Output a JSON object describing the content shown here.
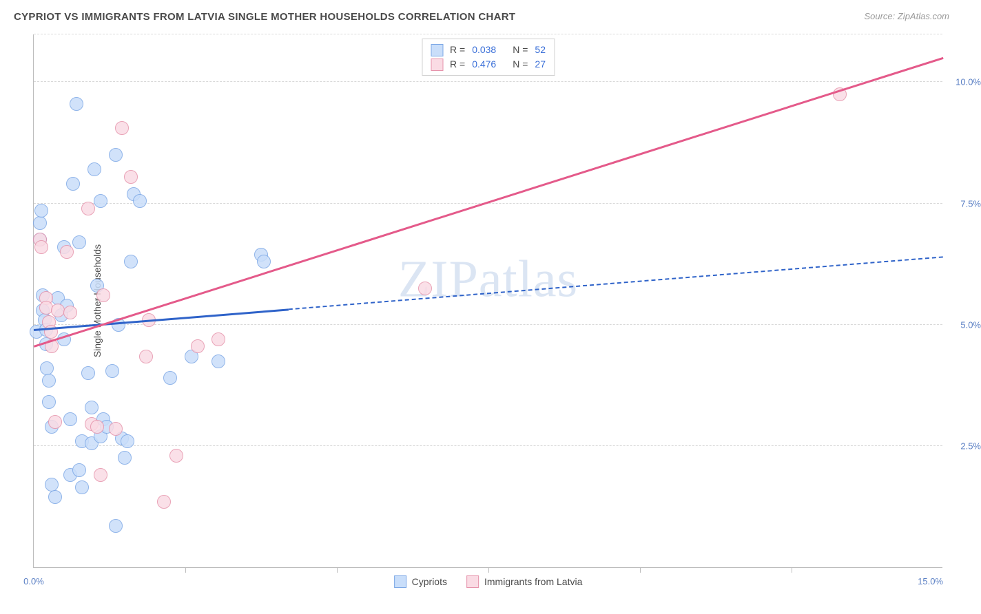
{
  "header": {
    "title": "CYPRIOT VS IMMIGRANTS FROM LATVIA SINGLE MOTHER HOUSEHOLDS CORRELATION CHART",
    "source": "Source: ZipAtlas.com"
  },
  "chart": {
    "type": "scatter",
    "ylabel": "Single Mother Households",
    "watermark": "ZIPatlas",
    "background_color": "#ffffff",
    "grid_color": "#d8d8d8",
    "axis_color": "#bdbdbd",
    "tick_label_color": "#5a7fc4",
    "xlim": [
      0.0,
      15.0
    ],
    "ylim": [
      0.0,
      11.0
    ],
    "yticks": [
      {
        "value": 2.5,
        "label": "2.5%"
      },
      {
        "value": 5.0,
        "label": "5.0%"
      },
      {
        "value": 7.5,
        "label": "7.5%"
      },
      {
        "value": 10.0,
        "label": "10.0%"
      }
    ],
    "xticks_minor": [
      2.5,
      5.0,
      7.5,
      10.0,
      12.5
    ],
    "xtick_labels": [
      {
        "value": 0.0,
        "label": "0.0%",
        "align": "center"
      },
      {
        "value": 15.0,
        "label": "15.0%",
        "align": "right"
      }
    ],
    "marker_radius": 10,
    "series": [
      {
        "name": "Cypriots",
        "fill_color": "#c9defa",
        "stroke_color": "#7da8e6",
        "stat_r": "0.038",
        "stat_n": "52",
        "trend": {
          "x1": 0.0,
          "y1": 4.9,
          "x2": 15.0,
          "y2": 6.4,
          "solid_until_x": 4.2,
          "color": "#2f63c9"
        },
        "points": [
          [
            0.05,
            4.85
          ],
          [
            0.1,
            7.1
          ],
          [
            0.1,
            6.75
          ],
          [
            0.12,
            7.35
          ],
          [
            0.15,
            5.6
          ],
          [
            0.15,
            5.3
          ],
          [
            0.18,
            5.1
          ],
          [
            0.2,
            4.9
          ],
          [
            0.2,
            4.6
          ],
          [
            0.22,
            4.1
          ],
          [
            0.25,
            3.85
          ],
          [
            0.25,
            3.4
          ],
          [
            0.3,
            2.9
          ],
          [
            0.3,
            1.7
          ],
          [
            0.35,
            1.45
          ],
          [
            0.4,
            5.55
          ],
          [
            0.45,
            5.2
          ],
          [
            0.5,
            4.7
          ],
          [
            0.5,
            6.6
          ],
          [
            0.55,
            5.4
          ],
          [
            0.6,
            3.05
          ],
          [
            0.6,
            1.9
          ],
          [
            0.65,
            7.9
          ],
          [
            0.7,
            9.55
          ],
          [
            0.75,
            6.7
          ],
          [
            0.8,
            2.6
          ],
          [
            0.75,
            2.0
          ],
          [
            0.8,
            1.65
          ],
          [
            0.9,
            4.0
          ],
          [
            0.95,
            3.3
          ],
          [
            0.95,
            2.55
          ],
          [
            1.0,
            8.2
          ],
          [
            1.05,
            5.8
          ],
          [
            1.1,
            7.55
          ],
          [
            1.1,
            2.7
          ],
          [
            1.15,
            3.05
          ],
          [
            1.2,
            2.9
          ],
          [
            1.3,
            4.05
          ],
          [
            1.35,
            8.5
          ],
          [
            1.4,
            5.0
          ],
          [
            1.45,
            2.65
          ],
          [
            1.35,
            0.85
          ],
          [
            1.5,
            2.25
          ],
          [
            1.55,
            2.6
          ],
          [
            1.6,
            6.3
          ],
          [
            1.65,
            7.7
          ],
          [
            1.75,
            7.55
          ],
          [
            2.25,
            3.9
          ],
          [
            2.6,
            4.35
          ],
          [
            3.05,
            4.25
          ],
          [
            3.75,
            6.45
          ],
          [
            3.8,
            6.3
          ]
        ]
      },
      {
        "name": "Immigrants from Latvia",
        "fill_color": "#fadbe4",
        "stroke_color": "#e693ab",
        "stat_r": "0.476",
        "stat_n": "27",
        "trend": {
          "x1": 0.0,
          "y1": 4.55,
          "x2": 15.0,
          "y2": 10.5,
          "solid_until_x": 15.0,
          "color": "#e45a8a"
        },
        "points": [
          [
            0.1,
            6.75
          ],
          [
            0.12,
            6.6
          ],
          [
            0.2,
            5.55
          ],
          [
            0.2,
            5.35
          ],
          [
            0.25,
            5.05
          ],
          [
            0.28,
            4.85
          ],
          [
            0.3,
            4.55
          ],
          [
            0.35,
            3.0
          ],
          [
            0.4,
            5.3
          ],
          [
            0.55,
            6.5
          ],
          [
            0.6,
            5.25
          ],
          [
            0.9,
            7.4
          ],
          [
            0.95,
            2.95
          ],
          [
            1.05,
            2.9
          ],
          [
            1.1,
            1.9
          ],
          [
            1.15,
            5.6
          ],
          [
            1.35,
            2.85
          ],
          [
            1.45,
            9.05
          ],
          [
            1.6,
            8.05
          ],
          [
            1.85,
            4.35
          ],
          [
            1.9,
            5.1
          ],
          [
            2.15,
            1.35
          ],
          [
            2.35,
            2.3
          ],
          [
            2.7,
            4.55
          ],
          [
            3.05,
            4.7
          ],
          [
            6.45,
            5.75
          ],
          [
            13.3,
            9.75
          ]
        ]
      }
    ]
  },
  "legend_bottom": {
    "items": [
      {
        "label": "Cypriots",
        "fill": "#c9defa",
        "stroke": "#7da8e6"
      },
      {
        "label": "Immigrants from Latvia",
        "fill": "#fadbe4",
        "stroke": "#e693ab"
      }
    ]
  }
}
